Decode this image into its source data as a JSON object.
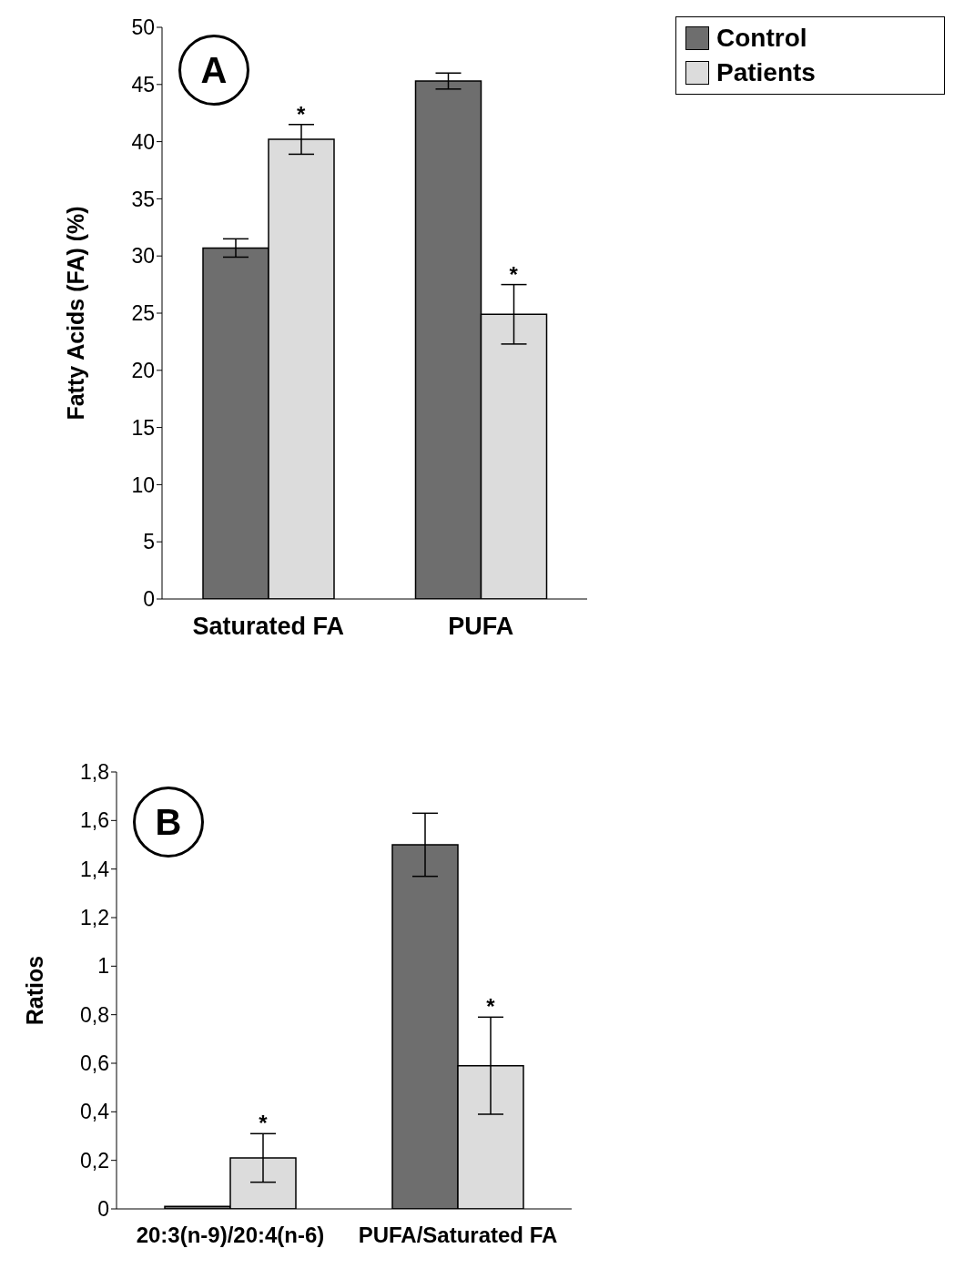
{
  "chart_data": [
    {
      "type": "bar",
      "ylabel": "Fatty Acids  (FA) (%)",
      "categories": [
        "Saturated FA",
        "PUFA"
      ],
      "series": [
        {
          "name": "Control",
          "color": "#6e6e6e",
          "values": [
            30.7,
            45.3
          ],
          "errors": [
            0.8,
            0.7
          ]
        },
        {
          "name": "Patients",
          "color": "#dcdcdc",
          "values": [
            40.2,
            24.9
          ],
          "errors": [
            1.3,
            2.6
          ]
        }
      ],
      "ylim": [
        0,
        50
      ],
      "yticks": [
        0,
        5,
        10,
        15,
        20,
        25,
        30,
        35,
        40,
        45,
        50
      ],
      "grid": false,
      "legend": "top right",
      "annotations": [
        "A",
        "*",
        "*"
      ]
    },
    {
      "type": "bar",
      "ylabel": "Ratios",
      "categories": [
        "20:3(n-9)/20:4(n-6)",
        "PUFA/Saturated FA"
      ],
      "series": [
        {
          "color": "#6e6e6e",
          "values": [
            0.01,
            1.5
          ],
          "errors": [
            null,
            0.13
          ]
        },
        {
          "color": "#dcdcdc",
          "values": [
            0.21,
            0.59
          ],
          "errors": [
            0.1,
            0.2
          ]
        }
      ],
      "ylim": [
        0,
        1.8
      ],
      "yticks": [
        0,
        {
          "value": 0.2,
          "label": "0,2"
        },
        {
          "value": 0.4,
          "label": "0,4"
        },
        {
          "value": 0.6,
          "label": "0,6"
        },
        {
          "value": 0.8,
          "label": "0,8"
        },
        1,
        {
          "value": 1.2,
          "label": "1,2"
        },
        {
          "value": 1.4,
          "label": "1,4"
        },
        {
          "value": 1.6,
          "label": "1,6"
        },
        {
          "value": 1.8,
          "label": "1,8"
        }
      ],
      "grid": false,
      "legend": false,
      "annotations": [
        "B",
        "*",
        "*"
      ]
    }
  ]
}
